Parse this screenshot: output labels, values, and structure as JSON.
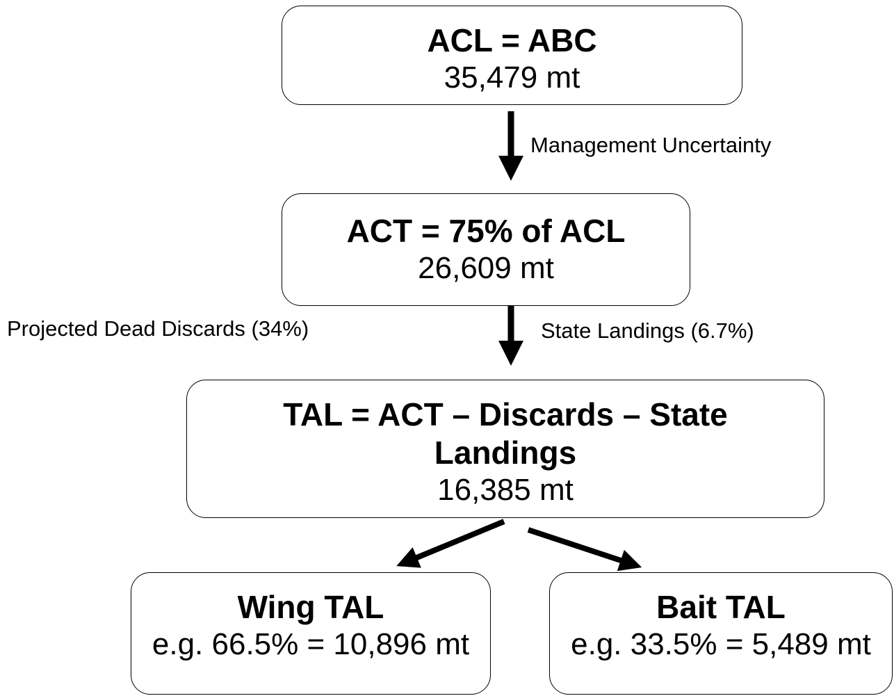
{
  "nodes": [
    {
      "title": "ACL = ABC",
      "value": "35,479 mt"
    },
    {
      "title": "ACT = 75% of ACL",
      "value": "26,609 mt"
    },
    {
      "title": "TAL = ACT – Discards – State Landings",
      "value": "16,385 mt"
    },
    {
      "title": "Wing TAL",
      "value": "e.g. 66.5% = 10,896 mt"
    },
    {
      "title": "Bait TAL",
      "value": "e.g. 33.5% = 5,489 mt"
    }
  ],
  "edges": [
    {
      "label": "Management Uncertainty"
    },
    {
      "labels": [
        "Projected Dead Discards (34%)",
        "State Landings (6.7%)"
      ]
    }
  ]
}
